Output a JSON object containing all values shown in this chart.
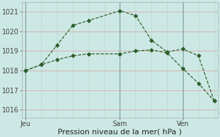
{
  "line1_x": [
    0,
    2,
    4,
    6,
    8,
    12,
    14,
    16,
    18,
    20,
    22,
    24
  ],
  "line1_y": [
    1018.0,
    1018.3,
    1019.3,
    1020.3,
    1020.55,
    1021.05,
    1020.8,
    1019.55,
    1018.95,
    1019.1,
    1018.75,
    1016.45
  ],
  "line2_x": [
    0,
    2,
    4,
    6,
    8,
    12,
    14,
    16,
    18,
    20,
    22,
    24
  ],
  "line2_y": [
    1018.0,
    1018.3,
    1018.55,
    1018.75,
    1018.85,
    1018.85,
    1019.0,
    1019.05,
    1018.9,
    1018.1,
    1017.35,
    1016.45
  ],
  "line_color": "#2a5e2a",
  "bg_color": "#cce8e4",
  "grid_h_color": "#d8a8a8",
  "grid_v_color": "#b8ccc8",
  "yticks": [
    1016,
    1017,
    1018,
    1019,
    1020,
    1021
  ],
  "ylim": [
    1015.6,
    1021.5
  ],
  "xlim": [
    -0.5,
    24.5
  ],
  "xlabel": "Pression niveau de la mer( hPa )",
  "day_labels": [
    "Jeu",
    "Sam",
    "Ven"
  ],
  "day_positions": [
    0,
    12,
    20
  ],
  "vline_positions": [
    0,
    12,
    20
  ],
  "xlabel_fontsize": 8,
  "tick_fontsize": 7,
  "marker": "D",
  "markersize": 2.5
}
